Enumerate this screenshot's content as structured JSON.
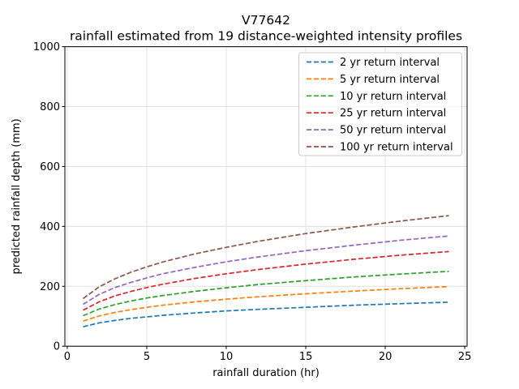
{
  "title": "V77642",
  "subtitle": "rainfall estimated from 19 distance-weighted intensity profiles",
  "axes": {
    "xlabel": "rainfall duration (hr)",
    "ylabel": "predicted rainfall depth (mm)",
    "x_ticks": [
      0,
      5,
      10,
      15,
      20,
      25
    ],
    "y_ticks": [
      0,
      200,
      400,
      600,
      800,
      1000
    ]
  },
  "style": {
    "grid_color": "#e0e0e0",
    "frame_color": "#000000",
    "legend_border_color": "#cccccc",
    "line_dash": "6.2 2.7",
    "line_width": 1.7
  },
  "chart_data": {
    "type": "line",
    "title": "V77642",
    "subtitle": "rainfall estimated from 19 distance-weighted intensity profiles",
    "xlabel": "rainfall duration (hr)",
    "ylabel": "predicted rainfall depth (mm)",
    "xlim": [
      -0.15,
      25.15
    ],
    "ylim": [
      0,
      1000
    ],
    "grid": true,
    "legend_position": "upper right",
    "line_style": "dashed",
    "x": [
      1,
      2,
      3,
      4,
      5,
      6,
      8,
      10,
      12,
      15,
      18,
      21,
      24
    ],
    "series": [
      {
        "name": "2 yr return interval",
        "color": "#1f77b4",
        "values": [
          65,
          78,
          86,
          93,
          98,
          103,
          111,
          118,
          123,
          130,
          137,
          142,
          147
        ]
      },
      {
        "name": "5 yr return interval",
        "color": "#ff7f0e",
        "values": [
          84,
          101,
          113,
          122,
          130,
          137,
          148,
          157,
          165,
          175,
          184,
          192,
          199
        ]
      },
      {
        "name": "10 yr return interval",
        "color": "#2ca02c",
        "values": [
          102,
          124,
          139,
          151,
          161,
          169,
          183,
          195,
          206,
          219,
          231,
          241,
          250
        ]
      },
      {
        "name": "25 yr return interval",
        "color": "#d62728",
        "values": [
          120,
          148,
          168,
          183,
          196,
          207,
          226,
          242,
          256,
          274,
          290,
          304,
          316
        ]
      },
      {
        "name": "50 yr return interval",
        "color": "#9467bd",
        "values": [
          140,
          173,
          196,
          213,
          228,
          242,
          263,
          282,
          298,
          319,
          337,
          354,
          368
        ]
      },
      {
        "name": "100 yr return interval",
        "color": "#8c564b",
        "values": [
          159,
          198,
          225,
          247,
          265,
          281,
          308,
          330,
          350,
          376,
          398,
          418,
          436
        ]
      }
    ]
  }
}
